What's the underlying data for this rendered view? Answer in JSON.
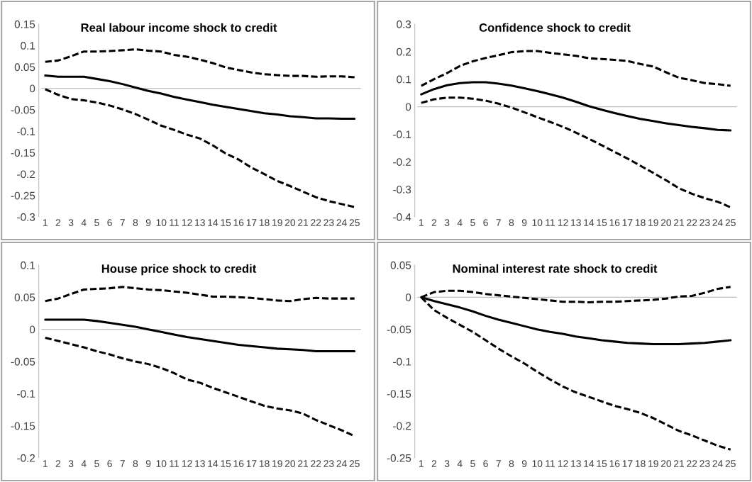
{
  "chart_data": [
    {
      "type": "line",
      "title": "Real labour income shock to credit",
      "categories": [
        "1",
        "2",
        "3",
        "4",
        "5",
        "6",
        "7",
        "8",
        "9",
        "10",
        "11",
        "12",
        "13",
        "14",
        "15",
        "16",
        "17",
        "18",
        "19",
        "20",
        "21",
        "22",
        "23",
        "24",
        "25"
      ],
      "ylim": [
        -0.3,
        0.15
      ],
      "yticks": [
        -0.3,
        -0.25,
        -0.2,
        -0.15,
        -0.1,
        -0.05,
        0,
        0.05,
        0.1,
        0.15
      ],
      "grid": false,
      "marker": "none",
      "ref_lines": [
        {
          "axis": "y",
          "value": 0,
          "color": "#bfbfbf"
        }
      ],
      "series": [
        {
          "color": "#000000",
          "line_style": "dashed",
          "values": [
            0.062,
            0.065,
            0.075,
            0.086,
            0.086,
            0.087,
            0.089,
            0.091,
            0.088,
            0.086,
            0.078,
            0.074,
            0.067,
            0.059,
            0.049,
            0.043,
            0.037,
            0.033,
            0.031,
            0.029,
            0.029,
            0.027,
            0.028,
            0.028,
            0.026
          ]
        },
        {
          "color": "#000000",
          "line_style": "solid",
          "values": [
            0.03,
            0.027,
            0.027,
            0.027,
            0.022,
            0.017,
            0.01,
            0.002,
            -0.006,
            -0.012,
            -0.02,
            -0.026,
            -0.032,
            -0.038,
            -0.043,
            -0.048,
            -0.053,
            -0.058,
            -0.061,
            -0.065,
            -0.067,
            -0.07,
            -0.07,
            -0.071,
            -0.071
          ]
        },
        {
          "color": "#000000",
          "line_style": "dashed",
          "values": [
            -0.002,
            -0.015,
            -0.025,
            -0.028,
            -0.033,
            -0.04,
            -0.049,
            -0.06,
            -0.073,
            -0.087,
            -0.097,
            -0.108,
            -0.117,
            -0.133,
            -0.152,
            -0.166,
            -0.185,
            -0.2,
            -0.216,
            -0.228,
            -0.241,
            -0.254,
            -0.263,
            -0.27,
            -0.277
          ]
        }
      ]
    },
    {
      "type": "line",
      "title": "Confidence shock to credit",
      "categories": [
        "1",
        "2",
        "3",
        "4",
        "5",
        "6",
        "7",
        "8",
        "9",
        "10",
        "11",
        "12",
        "13",
        "14",
        "15",
        "16",
        "17",
        "18",
        "19",
        "20",
        "21",
        "22",
        "23",
        "24",
        "25"
      ],
      "ylim": [
        -0.4,
        0.3
      ],
      "yticks": [
        -0.4,
        -0.3,
        -0.2,
        -0.1,
        0,
        0.1,
        0.2,
        0.3
      ],
      "grid": false,
      "marker": "none",
      "ref_lines": [
        {
          "axis": "y",
          "value": 0,
          "color": "#bfbfbf"
        }
      ],
      "series": [
        {
          "color": "#000000",
          "line_style": "dashed",
          "values": [
            0.076,
            0.1,
            0.122,
            0.148,
            0.165,
            0.177,
            0.187,
            0.198,
            0.202,
            0.202,
            0.196,
            0.19,
            0.185,
            0.176,
            0.173,
            0.17,
            0.166,
            0.155,
            0.146,
            0.125,
            0.105,
            0.096,
            0.086,
            0.082,
            0.076
          ]
        },
        {
          "color": "#000000",
          "line_style": "solid",
          "values": [
            0.045,
            0.064,
            0.078,
            0.086,
            0.089,
            0.089,
            0.084,
            0.077,
            0.067,
            0.057,
            0.045,
            0.033,
            0.018,
            0.002,
            -0.011,
            -0.023,
            -0.034,
            -0.044,
            -0.052,
            -0.06,
            -0.067,
            -0.073,
            -0.078,
            -0.084,
            -0.086
          ]
        },
        {
          "color": "#000000",
          "line_style": "dashed",
          "values": [
            0.014,
            0.027,
            0.033,
            0.033,
            0.029,
            0.022,
            0.011,
            -0.003,
            -0.02,
            -0.038,
            -0.055,
            -0.073,
            -0.094,
            -0.116,
            -0.14,
            -0.164,
            -0.188,
            -0.214,
            -0.24,
            -0.267,
            -0.296,
            -0.316,
            -0.332,
            -0.345,
            -0.365
          ]
        }
      ]
    },
    {
      "type": "line",
      "title": "House price shock to credit",
      "categories": [
        "1",
        "2",
        "3",
        "4",
        "5",
        "6",
        "7",
        "8",
        "9",
        "10",
        "11",
        "12",
        "13",
        "14",
        "15",
        "16",
        "17",
        "18",
        "19",
        "20",
        "21",
        "22",
        "23",
        "24",
        "25"
      ],
      "ylim": [
        -0.2,
        0.1
      ],
      "yticks": [
        -0.2,
        -0.15,
        -0.1,
        -0.05,
        0,
        0.05,
        0.1
      ],
      "grid": false,
      "marker": "none",
      "ref_lines": [
        {
          "axis": "y",
          "value": 0,
          "color": "#bfbfbf"
        }
      ],
      "series": [
        {
          "color": "#000000",
          "line_style": "dashed",
          "values": [
            0.044,
            0.048,
            0.055,
            0.062,
            0.063,
            0.064,
            0.066,
            0.064,
            0.062,
            0.061,
            0.059,
            0.057,
            0.054,
            0.051,
            0.051,
            0.05,
            0.049,
            0.047,
            0.045,
            0.044,
            0.047,
            0.049,
            0.048,
            0.048,
            0.048
          ]
        },
        {
          "color": "#000000",
          "line_style": "solid",
          "values": [
            0.015,
            0.015,
            0.015,
            0.015,
            0.013,
            0.01,
            0.007,
            0.004,
            0.0,
            -0.004,
            -0.008,
            -0.012,
            -0.015,
            -0.018,
            -0.021,
            -0.024,
            -0.026,
            -0.028,
            -0.03,
            -0.031,
            -0.032,
            -0.034,
            -0.034,
            -0.034,
            -0.034
          ]
        },
        {
          "color": "#000000",
          "line_style": "dashed",
          "values": [
            -0.013,
            -0.018,
            -0.023,
            -0.028,
            -0.034,
            -0.039,
            -0.045,
            -0.05,
            -0.054,
            -0.06,
            -0.068,
            -0.078,
            -0.083,
            -0.091,
            -0.098,
            -0.105,
            -0.112,
            -0.119,
            -0.123,
            -0.126,
            -0.131,
            -0.141,
            -0.149,
            -0.157,
            -0.166
          ]
        }
      ]
    },
    {
      "type": "line",
      "title": "Nominal interest rate shock to credit",
      "categories": [
        "1",
        "2",
        "3",
        "4",
        "5",
        "6",
        "7",
        "8",
        "9",
        "10",
        "11",
        "12",
        "13",
        "14",
        "15",
        "16",
        "17",
        "18",
        "19",
        "20",
        "21",
        "22",
        "23",
        "24",
        "25"
      ],
      "ylim": [
        -0.25,
        0.05
      ],
      "yticks": [
        -0.25,
        -0.2,
        -0.15,
        -0.1,
        -0.05,
        0,
        0.05
      ],
      "grid": false,
      "marker": "none",
      "ref_lines": [
        {
          "axis": "y",
          "value": 0,
          "color": "#bfbfbf"
        }
      ],
      "series": [
        {
          "color": "#000000",
          "line_style": "dashed",
          "values": [
            0,
            0.008,
            0.01,
            0.01,
            0.008,
            0.005,
            0.003,
            0.001,
            -0.001,
            -0.003,
            -0.005,
            -0.007,
            -0.007,
            -0.008,
            -0.007,
            -0.007,
            -0.006,
            -0.005,
            -0.004,
            -0.002,
            0.001,
            0.002,
            0.007,
            0.013,
            0.016
          ]
        },
        {
          "color": "#000000",
          "line_style": "solid",
          "values": [
            0,
            -0.006,
            -0.011,
            -0.016,
            -0.022,
            -0.029,
            -0.035,
            -0.04,
            -0.045,
            -0.05,
            -0.054,
            -0.057,
            -0.061,
            -0.064,
            -0.067,
            -0.069,
            -0.071,
            -0.072,
            -0.073,
            -0.073,
            -0.073,
            -0.072,
            -0.071,
            -0.069,
            -0.067
          ]
        },
        {
          "color": "#000000",
          "line_style": "dashed",
          "values": [
            0,
            -0.02,
            -0.032,
            -0.043,
            -0.054,
            -0.067,
            -0.08,
            -0.092,
            -0.103,
            -0.116,
            -0.128,
            -0.139,
            -0.148,
            -0.155,
            -0.162,
            -0.169,
            -0.174,
            -0.18,
            -0.188,
            -0.198,
            -0.208,
            -0.215,
            -0.223,
            -0.231,
            -0.237
          ]
        }
      ]
    }
  ]
}
